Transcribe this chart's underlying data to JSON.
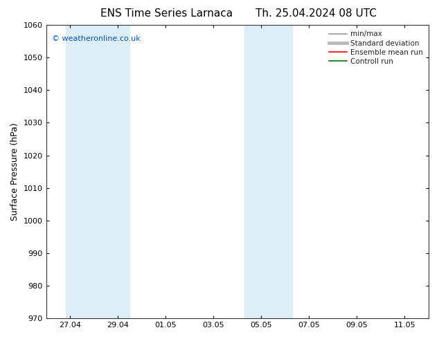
{
  "title_left": "ENS Time Series Larnaca",
  "title_right": "Th. 25.04.2024 08 UTC",
  "ylabel": "Surface Pressure (hPa)",
  "ylim_bottom": 970,
  "ylim_top": 1060,
  "yticks": [
    970,
    980,
    990,
    1000,
    1010,
    1020,
    1030,
    1040,
    1050,
    1060
  ],
  "xtick_labels": [
    "27.04",
    "29.04",
    "01.05",
    "03.05",
    "05.05",
    "07.05",
    "09.05",
    "11.05"
  ],
  "xtick_positions": [
    27,
    29,
    31,
    33,
    35,
    37,
    39,
    41
  ],
  "xlim_left": 26.0,
  "xlim_right": 42.0,
  "shaded_regions": [
    {
      "x_start": 26.5,
      "x_end": 27.5,
      "color": "#ddeeff"
    },
    {
      "x_start": 27.5,
      "x_end": 29.5,
      "color": "#ddeeff"
    },
    {
      "x_start": 34.0,
      "x_end": 35.0,
      "color": "#ddeeff"
    },
    {
      "x_start": 35.0,
      "x_end": 36.5,
      "color": "#ddeeff"
    }
  ],
  "watermark_text": "© weatheronline.co.uk",
  "watermark_color": "#0055cc",
  "background_color": "#ffffff",
  "plot_bg_color": "#ffffff",
  "legend_entries": [
    {
      "label": "min/max",
      "color": "#999999",
      "lw": 1.2
    },
    {
      "label": "Standard deviation",
      "color": "#bbbbbb",
      "lw": 3.5
    },
    {
      "label": "Ensemble mean run",
      "color": "#ff0000",
      "lw": 1.2
    },
    {
      "label": "Controll run",
      "color": "#007700",
      "lw": 1.2
    }
  ],
  "title_fontsize": 11,
  "tick_fontsize": 8,
  "label_fontsize": 9,
  "legend_fontsize": 7.5
}
